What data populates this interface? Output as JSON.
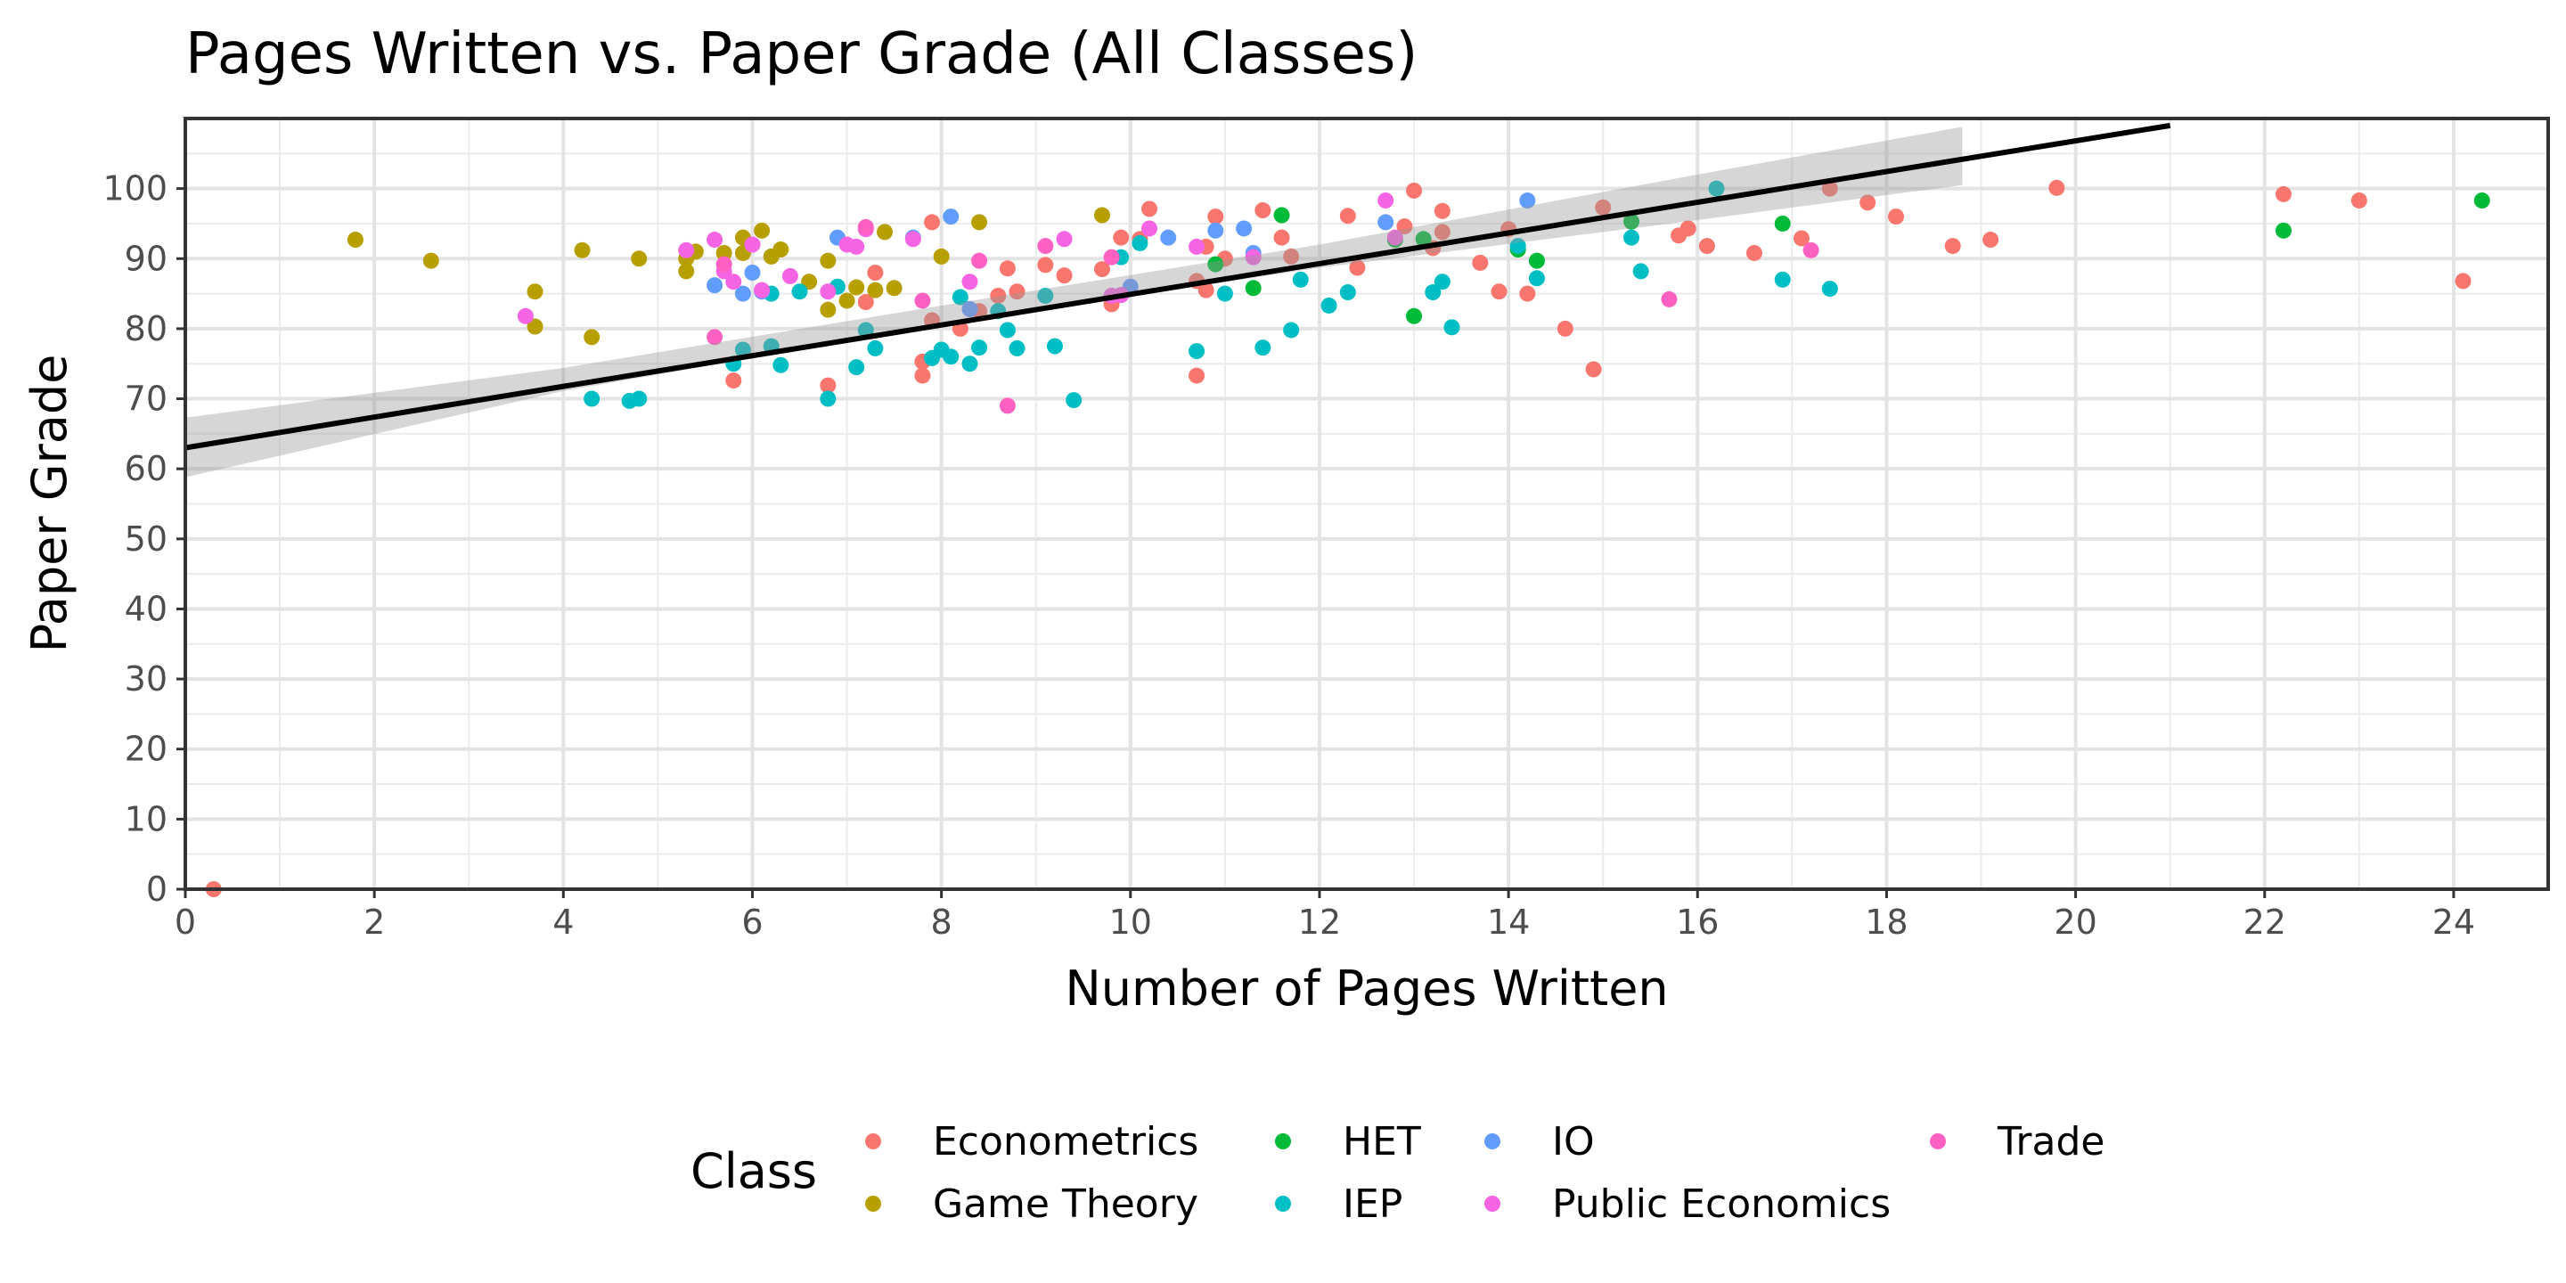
{
  "chart_data": {
    "type": "scatter",
    "title": "Pages Written vs. Paper Grade (All Classes)",
    "xlabel": "Number of Pages Written",
    "ylabel": "Paper Grade",
    "xlim": [
      0,
      25
    ],
    "ylim": [
      0,
      110
    ],
    "x_ticks": [
      0,
      2,
      4,
      6,
      8,
      10,
      12,
      14,
      16,
      18,
      20,
      22,
      24
    ],
    "y_ticks": [
      0,
      10,
      20,
      30,
      40,
      50,
      60,
      70,
      80,
      90,
      100
    ],
    "grid": true,
    "legend": {
      "title": "Class",
      "position": "bottom"
    },
    "trend_line": {
      "x": [
        0,
        21
      ],
      "y": [
        63,
        109
      ]
    },
    "confidence_band": {
      "x": [
        0,
        4,
        8,
        12,
        16,
        18.8
      ],
      "lower": [
        58.8,
        71.1,
        80.5,
        88.7,
        95.5,
        100.5
      ],
      "upper": [
        67.3,
        74.4,
        83.3,
        92.0,
        102.0,
        108.8
      ]
    },
    "series": [
      {
        "name": "Econometrics",
        "color": "#F8766D",
        "points": [
          [
            0.3,
            0
          ],
          [
            5.8,
            72.6
          ],
          [
            6.8,
            71.9
          ],
          [
            7.2,
            83.8
          ],
          [
            7.3,
            88
          ],
          [
            7.8,
            73.3
          ],
          [
            7.8,
            75.3
          ],
          [
            7.9,
            81.2
          ],
          [
            7.9,
            95.2
          ],
          [
            8.2,
            80
          ],
          [
            8.4,
            82.5
          ],
          [
            8.6,
            84.7
          ],
          [
            8.7,
            88.6
          ],
          [
            8.8,
            85.3
          ],
          [
            9.1,
            89.1
          ],
          [
            9.3,
            87.6
          ],
          [
            9.7,
            88.5
          ],
          [
            9.8,
            83.5
          ],
          [
            9.9,
            93
          ],
          [
            10.1,
            92.8
          ],
          [
            10.2,
            97.1
          ],
          [
            10.7,
            73.3
          ],
          [
            10.7,
            86.8
          ],
          [
            10.8,
            85.5
          ],
          [
            10.8,
            91.7
          ],
          [
            10.9,
            96
          ],
          [
            11,
            90
          ],
          [
            11.4,
            96.9
          ],
          [
            11.6,
            93
          ],
          [
            11.7,
            90.3
          ],
          [
            12.3,
            96.1
          ],
          [
            12.4,
            88.7
          ],
          [
            12.9,
            94.6
          ],
          [
            13,
            99.7
          ],
          [
            13.2,
            91.5
          ],
          [
            13.3,
            93.8
          ],
          [
            13.3,
            96.8
          ],
          [
            13.7,
            89.4
          ],
          [
            13.9,
            85.3
          ],
          [
            14,
            94.2
          ],
          [
            14.2,
            85
          ],
          [
            14.6,
            80
          ],
          [
            14.9,
            74.2
          ],
          [
            15,
            97.3
          ],
          [
            15.8,
            93.3
          ],
          [
            15.9,
            94.3
          ],
          [
            16.1,
            91.8
          ],
          [
            16.6,
            90.8
          ],
          [
            17.1,
            92.9
          ],
          [
            17.4,
            100
          ],
          [
            17.8,
            98
          ],
          [
            18.1,
            96
          ],
          [
            18.7,
            91.8
          ],
          [
            19.1,
            92.7
          ],
          [
            19.8,
            100.1
          ],
          [
            22.2,
            99.2
          ],
          [
            23,
            98.3
          ],
          [
            24.1,
            86.8
          ]
        ]
      },
      {
        "name": "Game Theory",
        "color": "#B79F00",
        "points": [
          [
            1.8,
            92.7
          ],
          [
            2.6,
            89.7
          ],
          [
            3.7,
            85.3
          ],
          [
            3.7,
            80.3
          ],
          [
            4.2,
            91.2
          ],
          [
            4.3,
            78.8
          ],
          [
            4.8,
            90
          ],
          [
            5.3,
            88.2
          ],
          [
            5.3,
            90
          ],
          [
            5.4,
            91
          ],
          [
            5.7,
            90.8
          ],
          [
            5.9,
            93
          ],
          [
            5.9,
            90.8
          ],
          [
            6.1,
            94
          ],
          [
            6.2,
            90.3
          ],
          [
            6.3,
            91.3
          ],
          [
            6.6,
            86.7
          ],
          [
            6.8,
            89.7
          ],
          [
            6.8,
            82.7
          ],
          [
            7,
            84
          ],
          [
            7.1,
            85.9
          ],
          [
            7.3,
            85.5
          ],
          [
            7.4,
            93.8
          ],
          [
            7.5,
            85.8
          ],
          [
            8,
            90.3
          ],
          [
            8.4,
            95.2
          ],
          [
            9.7,
            96.2
          ]
        ]
      },
      {
        "name": "HET",
        "color": "#00BA38",
        "points": [
          [
            10.9,
            89.2
          ],
          [
            11.3,
            85.8
          ],
          [
            11.6,
            96.2
          ],
          [
            12.8,
            92.7
          ],
          [
            13,
            81.8
          ],
          [
            13.1,
            92.8
          ],
          [
            14.1,
            91.3
          ],
          [
            14.3,
            89.7
          ],
          [
            15.3,
            95.3
          ],
          [
            16.9,
            95
          ],
          [
            22.2,
            94
          ],
          [
            24.3,
            98.3
          ]
        ]
      },
      {
        "name": "IEP",
        "color": "#00BFC4",
        "points": [
          [
            4.3,
            70
          ],
          [
            4.7,
            69.7
          ],
          [
            4.8,
            70
          ],
          [
            5.8,
            75
          ],
          [
            5.9,
            77
          ],
          [
            6.2,
            85
          ],
          [
            6.2,
            77.5
          ],
          [
            6.3,
            74.8
          ],
          [
            6.5,
            85.3
          ],
          [
            6.8,
            70
          ],
          [
            6.9,
            86
          ],
          [
            7.1,
            74.5
          ],
          [
            7.2,
            79.8
          ],
          [
            7.3,
            77.2
          ],
          [
            7.9,
            75.8
          ],
          [
            8,
            77
          ],
          [
            8.1,
            76
          ],
          [
            8.2,
            84.5
          ],
          [
            8.3,
            75
          ],
          [
            8.4,
            77.3
          ],
          [
            8.6,
            82.5
          ],
          [
            8.7,
            79.8
          ],
          [
            8.8,
            77.2
          ],
          [
            9.1,
            84.7
          ],
          [
            9.2,
            77.5
          ],
          [
            9.4,
            69.8
          ],
          [
            9.9,
            90.2
          ],
          [
            10.1,
            92.2
          ],
          [
            10.7,
            76.8
          ],
          [
            11,
            85
          ],
          [
            11.4,
            77.3
          ],
          [
            11.7,
            79.8
          ],
          [
            11.8,
            87
          ],
          [
            12.1,
            83.3
          ],
          [
            12.3,
            85.2
          ],
          [
            13.2,
            85.2
          ],
          [
            13.3,
            86.7
          ],
          [
            13.4,
            80.2
          ],
          [
            14.1,
            91.8
          ],
          [
            14.3,
            87.2
          ],
          [
            15.3,
            93
          ],
          [
            15.4,
            88.2
          ],
          [
            16.2,
            100
          ],
          [
            16.9,
            87
          ],
          [
            17.4,
            85.7
          ]
        ]
      },
      {
        "name": "IO",
        "color": "#619CFF",
        "points": [
          [
            5.6,
            86.2
          ],
          [
            5.9,
            85
          ],
          [
            6,
            88
          ],
          [
            6.1,
            85.3
          ],
          [
            6.9,
            93
          ],
          [
            7.7,
            93
          ],
          [
            8.1,
            96
          ],
          [
            8.3,
            82.8
          ],
          [
            10,
            86
          ],
          [
            10.4,
            93
          ],
          [
            10.9,
            94
          ],
          [
            11.2,
            94.3
          ],
          [
            11.3,
            90.8
          ],
          [
            12.7,
            95.2
          ],
          [
            14.2,
            98.3
          ]
        ]
      },
      {
        "name": "Public Economics",
        "color": "#F564E3",
        "points": [
          [
            3.6,
            81.8
          ],
          [
            5.3,
            91.2
          ],
          [
            5.6,
            92.7
          ],
          [
            5.7,
            88.2
          ],
          [
            5.8,
            86.7
          ],
          [
            6,
            92
          ],
          [
            6.1,
            85.5
          ],
          [
            6.4,
            87.5
          ],
          [
            6.8,
            85.3
          ],
          [
            7,
            92
          ],
          [
            7.1,
            91.7
          ],
          [
            7.2,
            94.2
          ],
          [
            7.7,
            92.8
          ],
          [
            8.3,
            86.7
          ],
          [
            9.3,
            92.8
          ],
          [
            9.8,
            84.7
          ],
          [
            9.9,
            84.8
          ],
          [
            10.2,
            94.3
          ],
          [
            10.7,
            91.7
          ],
          [
            11.3,
            90.2
          ],
          [
            12.7,
            98.3
          ],
          [
            12.8,
            93
          ]
        ]
      },
      {
        "name": "Trade",
        "color": "#FF61C3",
        "points": [
          [
            5.6,
            78.8
          ],
          [
            5.7,
            89.2
          ],
          [
            7.2,
            94.5
          ],
          [
            7.8,
            84
          ],
          [
            8.4,
            89.7
          ],
          [
            8.7,
            69
          ],
          [
            9.1,
            91.8
          ],
          [
            9.8,
            90.2
          ],
          [
            15.7,
            84.2
          ],
          [
            17.2,
            91.2
          ]
        ]
      }
    ]
  }
}
